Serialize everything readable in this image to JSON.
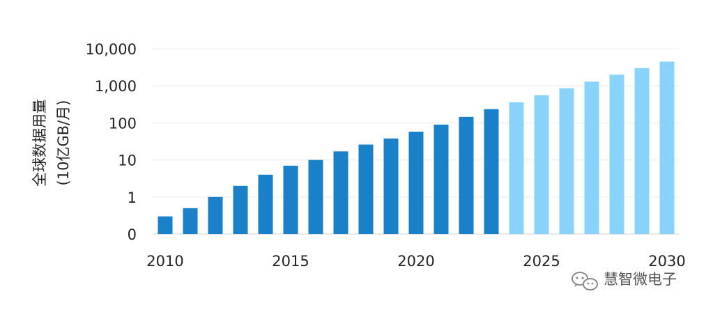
{
  "chart_data": {
    "type": "bar",
    "title": "",
    "ylabel": "全球数据用量",
    "ylabel_unit": "(10亿GB/月)",
    "yscale": "log",
    "ylim": [
      0.1,
      10000
    ],
    "y_ticks": [
      {
        "value": 0.1,
        "label": "0"
      },
      {
        "value": 1,
        "label": "1"
      },
      {
        "value": 10,
        "label": "10"
      },
      {
        "value": 100,
        "label": "100"
      },
      {
        "value": 1000,
        "label": "1,000"
      },
      {
        "value": 10000,
        "label": "10,000"
      }
    ],
    "grid": true,
    "x_tick_labels": [
      "2010",
      "2015",
      "2020",
      "2025",
      "2030"
    ],
    "categories": [
      2010,
      2011,
      2012,
      2013,
      2014,
      2015,
      2016,
      2017,
      2018,
      2019,
      2020,
      2021,
      2022,
      2023,
      2024,
      2025,
      2026,
      2027,
      2028,
      2029,
      2030
    ],
    "values": [
      0.3,
      0.5,
      1,
      2,
      4,
      7,
      10,
      17,
      26,
      38,
      58,
      90,
      145,
      235,
      360,
      560,
      860,
      1300,
      2000,
      3000,
      4500
    ],
    "colors": {
      "actual": "#1a80c7",
      "forecast": "#89d3fb"
    },
    "first_forecast_year": 2024
  },
  "watermark": {
    "text": "慧智微电子",
    "icon": "wechat-icon"
  }
}
